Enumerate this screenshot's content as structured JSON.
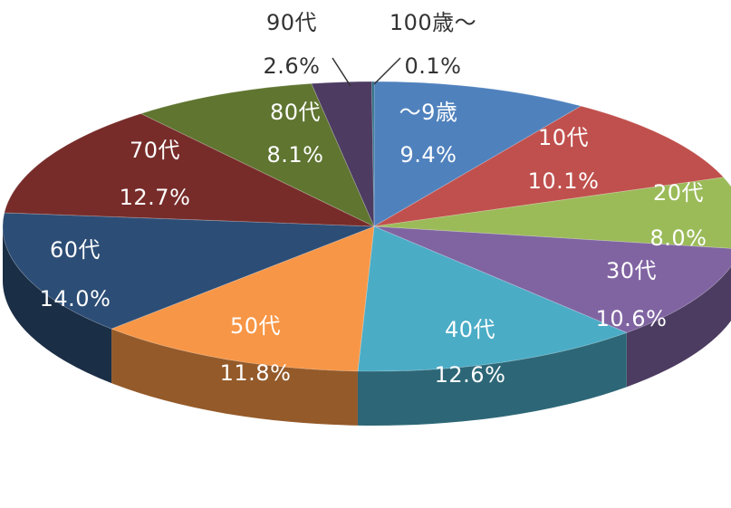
{
  "chart_data": {
    "type": "pie",
    "style": "3d",
    "title": "",
    "slices": [
      {
        "category": "～9歳",
        "percent_label": "9.4%",
        "value": 9.4,
        "color": "#4f81bd"
      },
      {
        "category": "10代",
        "percent_label": "10.1%",
        "value": 10.1,
        "color": "#c0504d"
      },
      {
        "category": "20代",
        "percent_label": "8.0%",
        "value": 8.0,
        "color": "#9bbb59"
      },
      {
        "category": "30代",
        "percent_label": "10.6%",
        "value": 10.6,
        "color": "#8064a2"
      },
      {
        "category": "40代",
        "percent_label": "12.6%",
        "value": 12.6,
        "color": "#4bacc6"
      },
      {
        "category": "50代",
        "percent_label": "11.8%",
        "value": 11.8,
        "color": "#f79646"
      },
      {
        "category": "60代",
        "percent_label": "14.0%",
        "value": 14.0,
        "color": "#2c4d75"
      },
      {
        "category": "70代",
        "percent_label": "12.7%",
        "value": 12.7,
        "color": "#772c2a"
      },
      {
        "category": "80代",
        "percent_label": "8.1%",
        "value": 8.1,
        "color": "#5f7530"
      },
      {
        "category": "90代",
        "percent_label": "2.6%",
        "value": 2.6,
        "color": "#4d3b62"
      },
      {
        "category": "100歳～",
        "percent_label": "0.1%",
        "value": 0.1,
        "color": "#2c6e85"
      }
    ]
  }
}
